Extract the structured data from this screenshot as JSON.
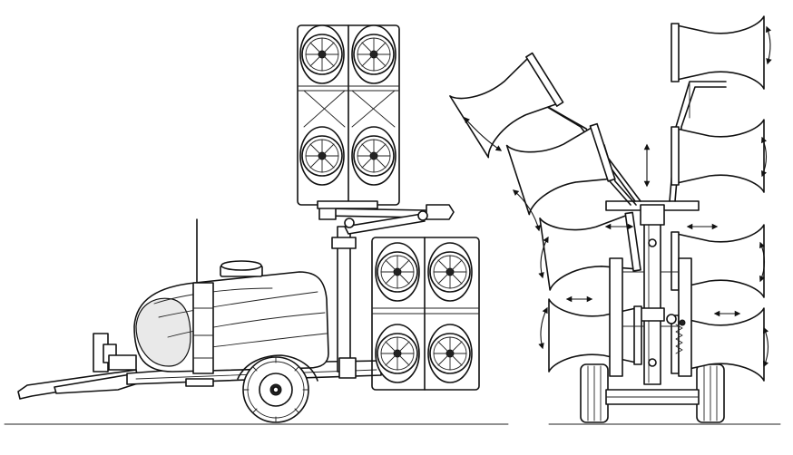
{
  "figure": {
    "background": "#ffffff",
    "line_color": "#111111",
    "views": [
      {
        "id": "side-view",
        "icon": "orchard-sprayer-side-view",
        "fan_count": 8
      },
      {
        "id": "rear-view",
        "icon": "orchard-sprayer-rear-view",
        "nozzle_count": 8
      }
    ]
  }
}
